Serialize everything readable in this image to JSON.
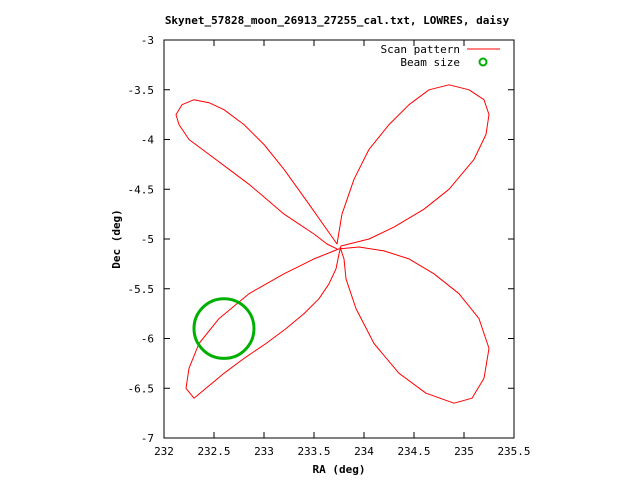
{
  "chart_data": {
    "type": "scatter",
    "title": "Skynet_57828_moon_26913_27255_cal.txt, LOWRES, daisy",
    "xlabel": "RA (deg)",
    "ylabel": "Dec (deg)",
    "xlim": [
      232,
      235.5
    ],
    "ylim": [
      -7,
      -3
    ],
    "xticks": [
      232,
      232.5,
      233,
      233.5,
      234,
      234.5,
      235,
      235.5
    ],
    "xtick_labels": [
      "232",
      "232.5",
      "233",
      "233.5",
      "234",
      "234.5",
      "235",
      "235.5"
    ],
    "yticks": [
      -7,
      -6.5,
      -6,
      -5.5,
      -5,
      -4.5,
      -4,
      -3.5,
      -3
    ],
    "ytick_labels": [
      "-7",
      "-6.5",
      "-6",
      "-5.5",
      "-5",
      "-4.5",
      "-4",
      "-3.5",
      "-3"
    ],
    "legend_position": "top-right",
    "grid": false,
    "series": [
      {
        "name": "Scan pattern",
        "kind": "line",
        "color": "#ff0000",
        "x": [
          233.73,
          233.63,
          233.5,
          233.35,
          233.2,
          233.05,
          232.85,
          232.65,
          232.45,
          232.25,
          232.15,
          232.12,
          232.18,
          232.3,
          232.45,
          232.6,
          232.8,
          233.0,
          233.2,
          233.45,
          233.73,
          233.78,
          233.9,
          234.05,
          234.25,
          234.45,
          234.65,
          234.85,
          235.05,
          235.2,
          235.25,
          235.22,
          235.1,
          234.85,
          234.6,
          234.3,
          234.05,
          233.85,
          233.77,
          233.75,
          233.72,
          233.65,
          233.55,
          233.4,
          233.22,
          233.02,
          232.8,
          232.6,
          232.42,
          232.3,
          232.22,
          232.25,
          232.35,
          232.55,
          232.85,
          233.2,
          233.5,
          233.75,
          233.95,
          234.2,
          234.45,
          234.7,
          234.95,
          235.15,
          235.25,
          235.2,
          235.08,
          234.9,
          234.62,
          234.35,
          234.1,
          233.92,
          233.82,
          233.8,
          233.76
        ],
        "y": [
          -5.1,
          -5.05,
          -4.95,
          -4.85,
          -4.75,
          -4.62,
          -4.45,
          -4.3,
          -4.15,
          -4.0,
          -3.85,
          -3.75,
          -3.65,
          -3.6,
          -3.63,
          -3.7,
          -3.85,
          -4.05,
          -4.3,
          -4.65,
          -5.05,
          -4.75,
          -4.4,
          -4.1,
          -3.85,
          -3.65,
          -3.5,
          -3.45,
          -3.5,
          -3.6,
          -3.75,
          -3.95,
          -4.2,
          -4.5,
          -4.7,
          -4.88,
          -5.0,
          -5.05,
          -5.07,
          -5.15,
          -5.3,
          -5.45,
          -5.6,
          -5.75,
          -5.9,
          -6.05,
          -6.2,
          -6.35,
          -6.5,
          -6.6,
          -6.5,
          -6.3,
          -6.05,
          -5.8,
          -5.55,
          -5.35,
          -5.2,
          -5.1,
          -5.08,
          -5.12,
          -5.2,
          -5.35,
          -5.55,
          -5.8,
          -6.1,
          -6.4,
          -6.6,
          -6.65,
          -6.55,
          -6.35,
          -6.05,
          -5.7,
          -5.4,
          -5.2,
          -5.08
        ]
      },
      {
        "name": "Beam size",
        "kind": "circle",
        "color": "#00b000",
        "center": [
          232.6,
          -5.9
        ],
        "radius": 0.3
      }
    ]
  }
}
